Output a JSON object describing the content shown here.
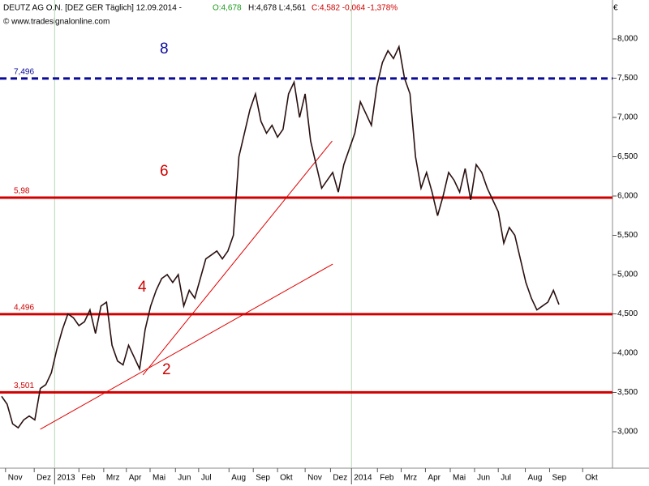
{
  "chart_data": {
    "type": "line",
    "header": {
      "name": "DEUTZ AG O.N. [DEZ GER  Täglich] 12.09.2014 -",
      "open": "O:4,678",
      "highlow": "H:4,678 L:4,561",
      "close": "C:4,582 -0,064 -1,378%"
    },
    "subtitle": "© www.tradesignalonline.com",
    "unit": "€",
    "series": [
      {
        "color": "#2a1010",
        "values": [
          3450,
          3350,
          3100,
          3050,
          3150,
          3200,
          3150,
          3550,
          3600,
          3750,
          4050,
          4300,
          4500,
          4450,
          4350,
          4400,
          4550,
          4250,
          4600,
          4650,
          4100,
          3900,
          3850,
          4100,
          3950,
          3800,
          4300,
          4600,
          4800,
          4950,
          5000,
          4900,
          5000,
          4600,
          4800,
          4700,
          4950,
          5200,
          5250,
          5300,
          5200,
          5300,
          5500,
          6500,
          6800,
          7100,
          7300,
          6950,
          6800,
          6900,
          6750,
          6850,
          7300,
          7450,
          7000,
          7300,
          6700,
          6400,
          6100,
          6200,
          6300,
          6050,
          6400,
          6600,
          6800,
          7200,
          7050,
          6900,
          7400,
          7700,
          7850,
          7750,
          7900,
          7500,
          7300,
          6500,
          6100,
          6300,
          6050,
          5750,
          6000,
          6300,
          6200,
          6050,
          6350,
          5950,
          6400,
          6300,
          6100,
          5950,
          5800,
          5400,
          5600,
          5500,
          5200,
          4900,
          4700,
          4550,
          4600,
          4650,
          4800,
          4620
        ]
      }
    ],
    "xlim": [
      -0.3,
      110.7
    ],
    "xticks": [
      {
        "value": 0.7,
        "label": "Nov"
      },
      {
        "value": 5.9,
        "label": "Dez"
      },
      {
        "value": 9.6,
        "label": "2013"
      },
      {
        "value": 14,
        "label": "Feb"
      },
      {
        "value": 18.5,
        "label": "Mrz"
      },
      {
        "value": 22.6,
        "label": "Apr"
      },
      {
        "value": 26.9,
        "label": "Mai"
      },
      {
        "value": 31.5,
        "label": "Jun"
      },
      {
        "value": 35.7,
        "label": "Jul"
      },
      {
        "value": 41.2,
        "label": "Aug"
      },
      {
        "value": 45.6,
        "label": "Sep"
      },
      {
        "value": 50,
        "label": "Okt"
      },
      {
        "value": 55,
        "label": "Nov"
      },
      {
        "value": 59.6,
        "label": "Dez"
      },
      {
        "value": 63.4,
        "label": "2014"
      },
      {
        "value": 68.1,
        "label": "Feb"
      },
      {
        "value": 72.4,
        "label": "Mrz"
      },
      {
        "value": 76.8,
        "label": "Apr"
      },
      {
        "value": 81.3,
        "label": "Mai"
      },
      {
        "value": 85.7,
        "label": "Jun"
      },
      {
        "value": 90,
        "label": "Jul"
      },
      {
        "value": 94.9,
        "label": "Aug"
      },
      {
        "value": 99.3,
        "label": "Sep"
      },
      {
        "value": 105.3,
        "label": "Okt"
      }
    ],
    "ylim": [
      2536,
      8495
    ],
    "yticks": [
      {
        "value": 3000,
        "label": "3,000"
      },
      {
        "value": 3500,
        "label": "3,500"
      },
      {
        "value": 4000,
        "label": "4,000"
      },
      {
        "value": 4500,
        "label": "4,500"
      },
      {
        "value": 5000,
        "label": "5,000"
      },
      {
        "value": 5500,
        "label": "5,500"
      },
      {
        "value": 6000,
        "label": "6,000"
      },
      {
        "value": 6500,
        "label": "6,500"
      },
      {
        "value": 7000,
        "label": "7,000"
      },
      {
        "value": 7500,
        "label": "7,500"
      },
      {
        "value": 8000,
        "label": "8,000"
      }
    ],
    "levels": [
      {
        "value": 7496,
        "label": "7,496",
        "color": "#0a0a9a",
        "dashed": true
      },
      {
        "value": 5980,
        "label": "5,98",
        "color": "#d00000",
        "dashed": false
      },
      {
        "value": 4496,
        "label": "4,496",
        "color": "#d00000",
        "dashed": false
      },
      {
        "value": 3501,
        "label": "3,501",
        "color": "#d00000",
        "dashed": false
      }
    ],
    "trendlines": [
      {
        "color": "#e00000",
        "x": [
          25.6,
          59.9
        ],
        "y": [
          3722,
          6701
        ]
      },
      {
        "color": "#e00000",
        "x": [
          7,
          60
        ],
        "y": [
          3031,
          5134
        ]
      }
    ],
    "annotations": [
      {
        "text": "8",
        "color": "#0a0a9a"
      },
      {
        "text": "6",
        "color": "#d00000"
      },
      {
        "text": "4",
        "color": "#d00000"
      },
      {
        "text": "2",
        "color": "#d00000"
      }
    ]
  }
}
